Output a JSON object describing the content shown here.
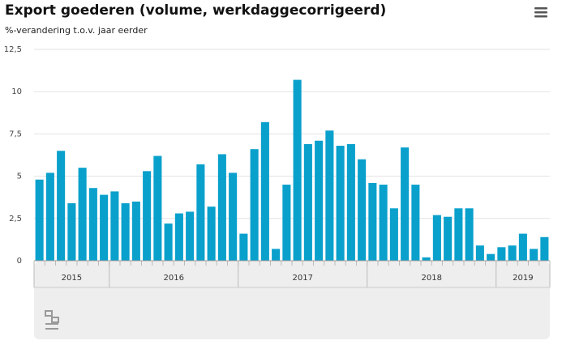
{
  "chart_data": {
    "type": "bar",
    "title": "Export goederen (volume, werkdaggecorrigeerd)",
    "subtitle": "%-verandering t.o.v. jaar eerder",
    "color": "#0aa0cc",
    "grid": true,
    "categories": [
      "2015",
      "2015",
      "2015",
      "2015",
      "2015",
      "2015",
      "2015",
      "2016",
      "2016",
      "2016",
      "2016",
      "2016",
      "2016",
      "2016",
      "2016",
      "2016",
      "2016",
      "2016",
      "2016",
      "2017",
      "2017",
      "2017",
      "2017",
      "2017",
      "2017",
      "2017",
      "2017",
      "2017",
      "2017",
      "2017",
      "2017",
      "2018",
      "2018",
      "2018",
      "2018",
      "2018",
      "2018",
      "2018",
      "2018",
      "2018",
      "2018",
      "2018",
      "2018",
      "2019",
      "2019",
      "2019",
      "2019",
      "2019"
    ],
    "values": [
      4.8,
      5.2,
      6.5,
      3.4,
      5.5,
      4.3,
      3.9,
      4.1,
      3.4,
      3.5,
      5.3,
      6.2,
      2.2,
      2.8,
      2.9,
      5.7,
      3.2,
      6.3,
      5.2,
      1.6,
      6.6,
      8.2,
      0.7,
      4.5,
      10.7,
      6.9,
      7.1,
      7.7,
      6.8,
      6.9,
      6.0,
      4.6,
      4.5,
      3.1,
      6.7,
      4.5,
      0.2,
      2.7,
      2.6,
      3.1,
      3.1,
      0.9,
      0.4,
      0.8,
      0.9,
      1.6,
      0.7,
      1.4
    ],
    "ylim": [
      0,
      12.5
    ],
    "yticks": [
      0,
      {
        "value": 2.5,
        "label": "2,5"
      },
      5,
      {
        "value": 7.5,
        "label": "7,5"
      },
      10,
      {
        "value": 12.5,
        "label": "12,5"
      }
    ]
  }
}
